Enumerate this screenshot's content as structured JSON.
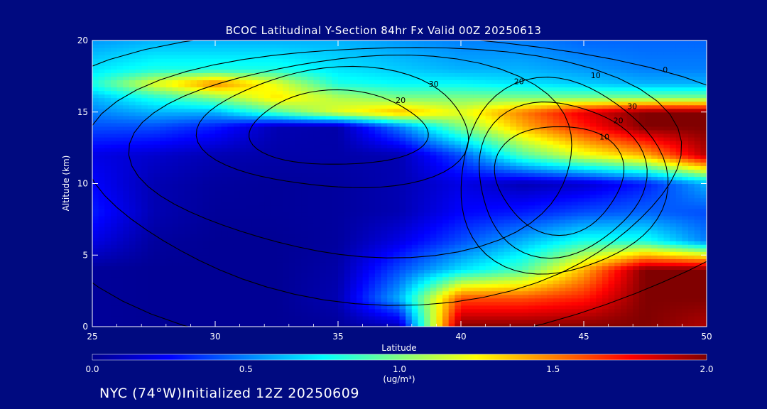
{
  "chart_data": {
    "type": "heatmap",
    "title": "BCOC Latitudinal Y-Section 84hr  Fx Valid 00Z 20250613",
    "xlabel": "Latitude",
    "ylabel": "Altitude (km)",
    "xlim": [
      25,
      50
    ],
    "ylim": [
      0,
      20
    ],
    "xticks": [
      25,
      30,
      35,
      40,
      45,
      50
    ],
    "yticks": [
      0,
      5,
      10,
      15,
      20
    ],
    "colorbar": {
      "min": 0.0,
      "max": 2.0,
      "ticks": [
        "0.0",
        "0.5",
        "1.0",
        "1.5",
        "2.0"
      ],
      "unit": "(ug/m³)",
      "colormap": "jet"
    },
    "heat_grid": {
      "latitudes": [
        25,
        27.5,
        30,
        32.5,
        35,
        37.5,
        40,
        42.5,
        45,
        47.5,
        50
      ],
      "altitudes": [
        0,
        2,
        4,
        6,
        8,
        10,
        12,
        14,
        15,
        16,
        17,
        18,
        20
      ],
      "values": [
        [
          0.05,
          0.04,
          0.04,
          0.04,
          0.05,
          0.1,
          2.0,
          2.0,
          2.0,
          2.0,
          1.9
        ],
        [
          0.05,
          0.04,
          0.04,
          0.04,
          0.1,
          0.6,
          1.6,
          1.6,
          1.7,
          2.0,
          2.0
        ],
        [
          0.05,
          0.04,
          0.04,
          0.04,
          0.08,
          0.4,
          0.7,
          0.9,
          1.4,
          2.0,
          2.0
        ],
        [
          0.2,
          0.06,
          0.04,
          0.04,
          0.06,
          0.2,
          0.4,
          0.6,
          0.8,
          0.8,
          0.5
        ],
        [
          0.3,
          0.1,
          0.05,
          0.05,
          0.06,
          0.1,
          0.25,
          0.3,
          0.4,
          0.45,
          0.4
        ],
        [
          0.25,
          0.1,
          0.06,
          0.05,
          0.06,
          0.1,
          0.2,
          0.1,
          0.15,
          0.3,
          0.6
        ],
        [
          0.2,
          0.15,
          0.1,
          0.08,
          0.08,
          0.1,
          0.4,
          0.9,
          1.2,
          1.4,
          1.9
        ],
        [
          0.4,
          0.4,
          0.3,
          0.1,
          0.08,
          0.5,
          1.0,
          1.4,
          1.7,
          2.0,
          2.0
        ],
        [
          0.5,
          0.6,
          0.6,
          0.9,
          1.2,
          1.4,
          1.2,
          1.5,
          1.8,
          2.0,
          2.0
        ],
        [
          0.6,
          0.8,
          1.0,
          1.3,
          1.1,
          1.0,
          1.0,
          1.0,
          1.0,
          1.0,
          1.0
        ],
        [
          0.8,
          1.2,
          1.5,
          1.2,
          0.8,
          0.75,
          0.75,
          0.7,
          0.65,
          0.6,
          0.6
        ],
        [
          0.7,
          0.8,
          0.8,
          0.8,
          0.7,
          0.65,
          0.6,
          0.6,
          0.55,
          0.5,
          0.5
        ],
        [
          0.55,
          0.6,
          0.6,
          0.6,
          0.6,
          0.55,
          0.5,
          0.5,
          0.45,
          0.45,
          0.45
        ]
      ]
    },
    "contours": [
      {
        "label": "10",
        "center": [
          44,
          10.4
        ],
        "radius": [
          2.6,
          3.8
        ]
      },
      {
        "label": "20",
        "center": [
          44,
          10.4
        ],
        "radius": [
          3.4,
          5.4
        ]
      },
      {
        "label": "30",
        "center": [
          44,
          10.4
        ],
        "radius": [
          4.2,
          6.8
        ]
      },
      {
        "label": "20",
        "center": [
          35,
          13.8
        ],
        "radius": [
          3.6,
          2.6
        ]
      },
      {
        "label": "30",
        "center": [
          35,
          13.8
        ],
        "radius": [
          5.5,
          4.2
        ]
      },
      {
        "label": "20",
        "center": [
          36,
          12.0
        ],
        "radius": [
          9.0,
          7.0
        ]
      },
      {
        "label": "10",
        "center": [
          37,
          11.0
        ],
        "radius": [
          12.0,
          9.0
        ]
      },
      {
        "label": "0",
        "center": [
          37,
          10.0
        ],
        "radius": [
          16.0,
          11.0
        ]
      }
    ],
    "footer": "NYC (74°W)Initialized 12Z 20250609"
  }
}
